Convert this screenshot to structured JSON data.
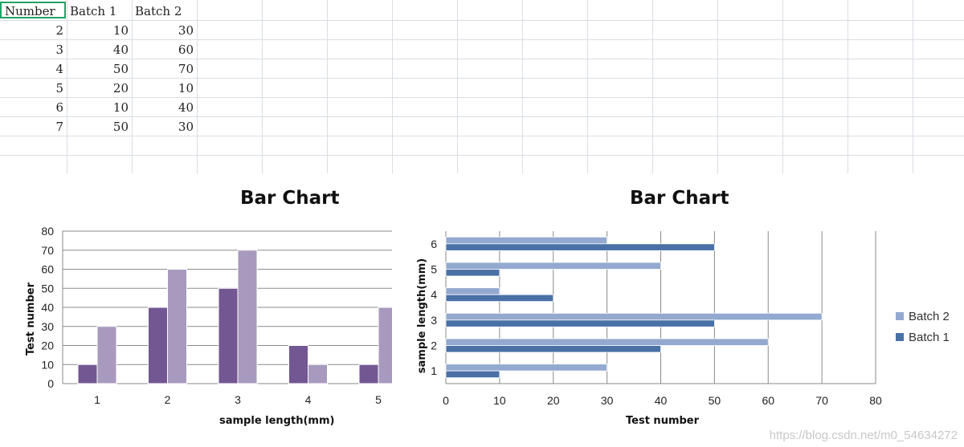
{
  "sheet": {
    "headers": [
      "Number",
      "Batch 1",
      "Batch 2"
    ],
    "rows": [
      [
        "2",
        "10",
        "30"
      ],
      [
        "3",
        "40",
        "60"
      ],
      [
        "4",
        "50",
        "70"
      ],
      [
        "5",
        "20",
        "10"
      ],
      [
        "6",
        "10",
        "40"
      ],
      [
        "7",
        "50",
        "30"
      ]
    ]
  },
  "watermark": "https://blog.csdn.net/m0_54634272",
  "colors": {
    "batch1_col": "#735792",
    "batch2_col": "#a89abe",
    "batch1_bar": "#4a71a6",
    "batch2_bar": "#93a9cf",
    "selection": "#21a366"
  },
  "chart_data": [
    {
      "type": "bar",
      "orientation": "vertical",
      "title": "Bar Chart",
      "xlabel": "sample length(mm)",
      "ylabel": "Test number",
      "categories": [
        "1",
        "2",
        "3",
        "4",
        "5"
      ],
      "series": [
        {
          "values": [
            10,
            40,
            50,
            20,
            10
          ]
        },
        {
          "values": [
            30,
            60,
            70,
            10,
            40
          ]
        }
      ],
      "ylim": [
        0,
        80
      ],
      "yticks": [
        "0",
        "10",
        "20",
        "30",
        "40",
        "50",
        "60",
        "70",
        "80"
      ],
      "grid": true
    },
    {
      "type": "bar",
      "orientation": "horizontal",
      "title": "Bar Chart",
      "xlabel": "Test number",
      "ylabel": "sample length(mm)",
      "categories": [
        "1",
        "2",
        "3",
        "4",
        "5",
        "6"
      ],
      "series": [
        {
          "name": "Batch 2",
          "values": [
            30,
            60,
            70,
            10,
            40,
            30
          ]
        },
        {
          "name": "Batch 1",
          "values": [
            10,
            40,
            50,
            20,
            10,
            50
          ]
        }
      ],
      "xlim": [
        0,
        80
      ],
      "xticks": [
        "0",
        "10",
        "20",
        "30",
        "40",
        "50",
        "60",
        "70",
        "80"
      ],
      "legend": "right",
      "grid": true
    }
  ]
}
